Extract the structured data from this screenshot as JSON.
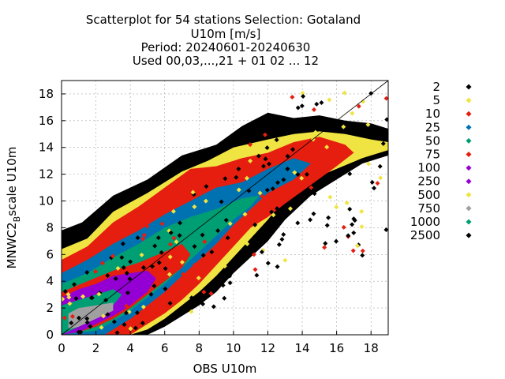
{
  "chart_data": {
    "type": "scatter",
    "title_lines": [
      "Scatterplot for   54 stations Selection: Gotaland",
      "U10m [m/s]",
      "Period: 20240601-20240630",
      "Used 00,03,...,21 + 01 02 ... 12"
    ],
    "xlabel": "OBS U10m",
    "ylabel_main": "MNWC2",
    "ylabel_sub": "B",
    "ylabel_tail": "scale U10m",
    "xlim": [
      0,
      19
    ],
    "ylim": [
      0,
      19
    ],
    "xticks": [
      "0",
      "2",
      "4",
      "6",
      "8",
      "10",
      "12",
      "14",
      "16",
      "18"
    ],
    "yticks": [
      "0",
      "2",
      "4",
      "6",
      "8",
      "10",
      "12",
      "14",
      "16",
      "18"
    ],
    "grid": true,
    "reference_line": {
      "from": [
        0,
        0
      ],
      "to": [
        19,
        19
      ]
    },
    "legend_position": "right",
    "legend": [
      {
        "label": "2",
        "color": "#000000"
      },
      {
        "label": "5",
        "color": "#f0e442"
      },
      {
        "label": "10",
        "color": "#e51e10"
      },
      {
        "label": "25",
        "color": "#0072b2"
      },
      {
        "label": "50",
        "color": "#009e73"
      },
      {
        "label": "75",
        "color": "#e51e10"
      },
      {
        "label": "100",
        "color": "#9400d3"
      },
      {
        "label": "250",
        "color": "#9400d3"
      },
      {
        "label": "500",
        "color": "#f0e442"
      },
      {
        "label": "750",
        "color": "#a0a0a0"
      },
      {
        "label": "1000",
        "color": "#009e73"
      },
      {
        "label": "2500",
        "color": "#000000"
      }
    ],
    "density_bands": [
      {
        "color": "#000000",
        "poly": [
          [
            0,
            7.8
          ],
          [
            1.2,
            8.4
          ],
          [
            3,
            10.4
          ],
          [
            5,
            11.6
          ],
          [
            7,
            13.4
          ],
          [
            9,
            14.2
          ],
          [
            10.5,
            15.6
          ],
          [
            12,
            16.6
          ],
          [
            13.5,
            16.2
          ],
          [
            15,
            16.4
          ],
          [
            16.5,
            16.0
          ],
          [
            18,
            15.8
          ],
          [
            19,
            15.4
          ],
          [
            19,
            13.4
          ],
          [
            17.5,
            12.8
          ],
          [
            16,
            11.6
          ],
          [
            14.5,
            10.4
          ],
          [
            13,
            8.6
          ],
          [
            12,
            7.0
          ],
          [
            11,
            5.8
          ],
          [
            10,
            4.6
          ],
          [
            9,
            3.2
          ],
          [
            8,
            2.2
          ],
          [
            7,
            1.4
          ],
          [
            6,
            0.6
          ],
          [
            5,
            0
          ],
          [
            0,
            0
          ]
        ]
      },
      {
        "color": "#f0e442",
        "poly": [
          [
            0,
            6.4
          ],
          [
            1.5,
            7.2
          ],
          [
            3,
            9.2
          ],
          [
            5,
            10.6
          ],
          [
            7,
            12.2
          ],
          [
            8.5,
            13.0
          ],
          [
            10,
            14.0
          ],
          [
            12,
            14.6
          ],
          [
            13.5,
            15.0
          ],
          [
            15,
            15.2
          ],
          [
            16.5,
            15.0
          ],
          [
            18,
            14.6
          ],
          [
            19,
            14.4
          ],
          [
            19,
            13.8
          ],
          [
            17.5,
            13.2
          ],
          [
            16,
            12.4
          ],
          [
            14.5,
            11.6
          ],
          [
            13,
            10.2
          ],
          [
            12,
            8.6
          ],
          [
            11,
            7.2
          ],
          [
            10,
            5.8
          ],
          [
            9,
            4.4
          ],
          [
            8,
            3.2
          ],
          [
            7,
            2.2
          ],
          [
            6,
            1.2
          ],
          [
            5,
            0.4
          ],
          [
            4,
            0
          ],
          [
            0,
            0
          ]
        ]
      },
      {
        "color": "#e51e10",
        "poly": [
          [
            0,
            5.6
          ],
          [
            1.5,
            6.6
          ],
          [
            3,
            8.4
          ],
          [
            4.5,
            9.6
          ],
          [
            6,
            11.0
          ],
          [
            7.5,
            12.4
          ],
          [
            9,
            12.6
          ],
          [
            10.5,
            13.2
          ],
          [
            12,
            13.6
          ],
          [
            13.5,
            14.4
          ],
          [
            15,
            14.8
          ],
          [
            16.5,
            14.2
          ],
          [
            17,
            13.6
          ],
          [
            16,
            12.6
          ],
          [
            14.5,
            11.2
          ],
          [
            13,
            9.8
          ],
          [
            12,
            8.8
          ],
          [
            11,
            8.0
          ],
          [
            10,
            6.6
          ],
          [
            9,
            5.2
          ],
          [
            8,
            3.8
          ],
          [
            7,
            2.6
          ],
          [
            6,
            1.6
          ],
          [
            5,
            0.8
          ],
          [
            4,
            0
          ],
          [
            0,
            0
          ]
        ]
      },
      {
        "color": "#0072b2",
        "poly": [
          [
            0,
            4.6
          ],
          [
            1.5,
            5.6
          ],
          [
            3,
            6.8
          ],
          [
            4.5,
            7.8
          ],
          [
            6,
            9.0
          ],
          [
            7.5,
            10.0
          ],
          [
            9,
            11.0
          ],
          [
            10.5,
            11.4
          ],
          [
            12,
            12.4
          ],
          [
            13.5,
            13.2
          ],
          [
            14.5,
            12.8
          ],
          [
            13.5,
            11.6
          ],
          [
            12,
            10.6
          ],
          [
            11,
            9.4
          ],
          [
            10,
            8.2
          ],
          [
            9,
            6.8
          ],
          [
            8,
            5.6
          ],
          [
            7,
            4.4
          ],
          [
            6,
            3.2
          ],
          [
            5,
            2.2
          ],
          [
            4,
            1.2
          ],
          [
            3,
            0.4
          ],
          [
            2.5,
            0
          ],
          [
            0,
            0
          ]
        ]
      },
      {
        "color": "#009e73",
        "poly": [
          [
            0,
            3.8
          ],
          [
            1.5,
            4.6
          ],
          [
            3,
            5.8
          ],
          [
            4.5,
            6.8
          ],
          [
            6,
            8.0
          ],
          [
            7.5,
            8.8
          ],
          [
            9,
            9.4
          ],
          [
            10.5,
            10.2
          ],
          [
            11.5,
            10.4
          ],
          [
            11,
            9.6
          ],
          [
            10,
            8.6
          ],
          [
            9,
            7.4
          ],
          [
            8,
            6.2
          ],
          [
            7,
            5.0
          ],
          [
            6,
            3.8
          ],
          [
            5,
            2.8
          ],
          [
            4,
            1.8
          ],
          [
            3,
            1.0
          ],
          [
            2,
            0.3
          ],
          [
            0,
            0
          ]
        ]
      },
      {
        "color": "#e51e10",
        "poly": [
          [
            0,
            3.2
          ],
          [
            1.5,
            4.0
          ],
          [
            3,
            4.8
          ],
          [
            4.5,
            5.4
          ],
          [
            6,
            6.2
          ],
          [
            7,
            6.8
          ],
          [
            7.5,
            6.0
          ],
          [
            7,
            5.0
          ],
          [
            6,
            4.0
          ],
          [
            5,
            3.0
          ],
          [
            4,
            2.0
          ],
          [
            3,
            1.2
          ],
          [
            2,
            0.6
          ],
          [
            1,
            0.2
          ],
          [
            0,
            0
          ]
        ]
      },
      {
        "color": "#9400d3",
        "poly": [
          [
            0,
            2.8
          ],
          [
            1,
            3.4
          ],
          [
            2,
            3.8
          ],
          [
            3,
            4.4
          ],
          [
            4,
            4.6
          ],
          [
            5,
            4.8
          ],
          [
            5.5,
            4.2
          ],
          [
            5,
            3.2
          ],
          [
            4,
            2.2
          ],
          [
            3,
            1.4
          ],
          [
            2,
            0.8
          ],
          [
            1,
            0.2
          ],
          [
            0,
            0
          ]
        ]
      },
      {
        "color": "#009e73",
        "poly": [
          [
            0,
            2.2
          ],
          [
            1,
            2.6
          ],
          [
            2,
            3.0
          ],
          [
            3,
            3.4
          ],
          [
            3.5,
            3.0
          ],
          [
            3,
            2.2
          ],
          [
            2,
            1.4
          ],
          [
            1,
            0.6
          ],
          [
            0,
            0
          ]
        ]
      },
      {
        "color": "#a0a0a0",
        "poly": [
          [
            0.4,
            1.6
          ],
          [
            1,
            2.0
          ],
          [
            2,
            2.2
          ],
          [
            3,
            2.4
          ],
          [
            3,
            1.8
          ],
          [
            2,
            1.2
          ],
          [
            1,
            0.6
          ],
          [
            0.4,
            0.4
          ]
        ]
      }
    ]
  }
}
